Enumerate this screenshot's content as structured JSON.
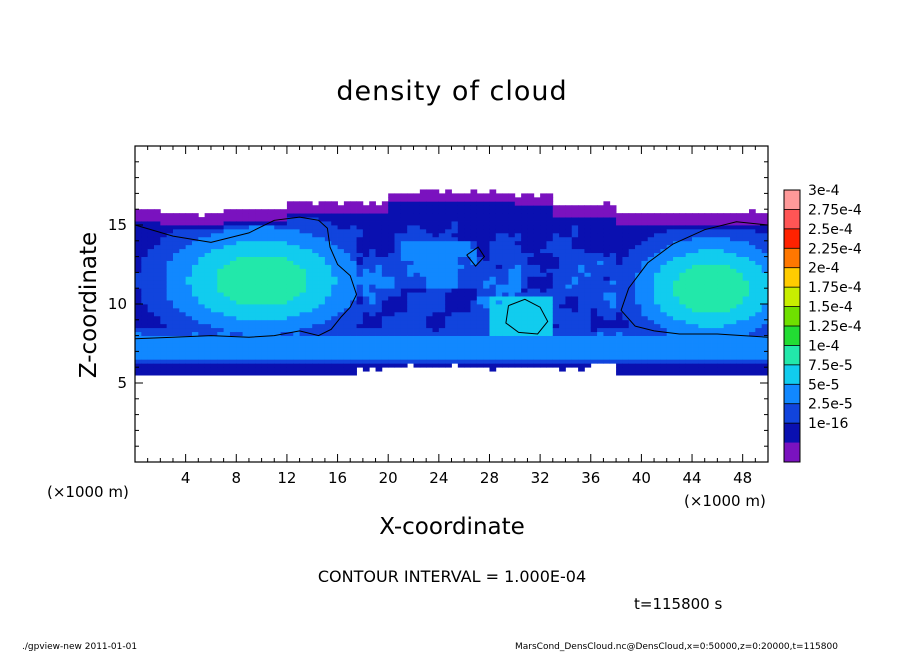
{
  "chart_data": {
    "type": "heatmap",
    "title": "density of cloud",
    "xlabel": "X-coordinate",
    "ylabel": "Z-coordinate",
    "x_unit_label": "(×1000 m)",
    "xlim": [
      0,
      50
    ],
    "ylim": [
      0,
      20
    ],
    "x_ticks": [
      4,
      8,
      12,
      16,
      20,
      24,
      28,
      32,
      36,
      40,
      44,
      48
    ],
    "y_ticks": [
      5,
      10,
      15
    ],
    "colorbar": {
      "labels": [
        "3e-4",
        "2.75e-4",
        "2.5e-4",
        "2.25e-4",
        "2e-4",
        "1.75e-4",
        "1.5e-4",
        "1.25e-4",
        "1e-4",
        "7.5e-5",
        "5e-5",
        "2.5e-5",
        "1e-16"
      ],
      "colors": [
        "#ff9999",
        "#ff5555",
        "#ff2200",
        "#ff7700",
        "#ffcc00",
        "#c8ee00",
        "#6fe000",
        "#22dd33",
        "#22e8aa",
        "#11ccee",
        "#1188ff",
        "#1144dd",
        "#0a10b0",
        "#7a12bf"
      ]
    },
    "contour_interval": "CONTOUR INTERVAL = 1.000E-04",
    "time_label": "t=115800 s"
  },
  "footer": {
    "left": "./gpview-new   2011-01-01",
    "right": "MarsCond_DensCloud.nc@DensCloud,x=0:50000,z=0:20000,t=115800"
  }
}
